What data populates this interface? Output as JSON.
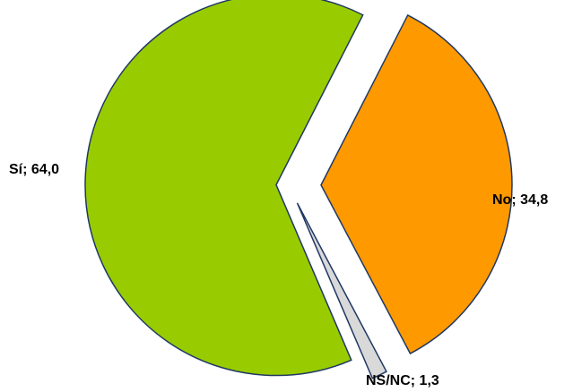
{
  "chart_data": {
    "type": "pie",
    "title": "",
    "slices": [
      {
        "label": "Sí",
        "value": 64.0,
        "display": "Sí; 64,0",
        "color": "#99cc00"
      },
      {
        "label": "No",
        "value": 34.8,
        "display": "No; 34,8",
        "color": "#ff9900"
      },
      {
        "label": "NS/NC",
        "value": 1.3,
        "display": "NS/NC; 1,3",
        "color": "#d9d9d9"
      }
    ],
    "outline_color": "#1f3864",
    "exploded": true,
    "legend": "none"
  }
}
